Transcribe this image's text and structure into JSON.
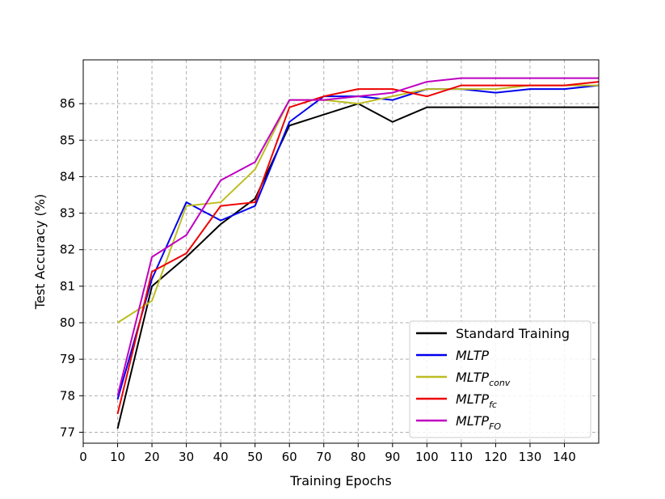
{
  "chart_data": {
    "type": "line",
    "xlabel": "Training Epochs",
    "ylabel": "Test Accuracy (%)",
    "xlim": [
      0,
      150
    ],
    "ylim": [
      76.7,
      87.2
    ],
    "xticks": [
      0,
      10,
      20,
      30,
      40,
      50,
      60,
      70,
      80,
      90,
      100,
      110,
      120,
      130,
      140
    ],
    "yticks": [
      77,
      78,
      79,
      80,
      81,
      82,
      83,
      84,
      85,
      86
    ],
    "grid": true,
    "legend_position": "bottom-right",
    "x": [
      10,
      20,
      30,
      40,
      50,
      60,
      70,
      80,
      90,
      100,
      110,
      120,
      130,
      140,
      150
    ],
    "series": [
      {
        "name": "Standard Training",
        "name_main": "Standard Training",
        "name_sub": "",
        "italic": false,
        "color": "#000000",
        "values": [
          77.1,
          81.0,
          81.8,
          82.7,
          83.4,
          85.4,
          85.7,
          86.0,
          85.5,
          85.9,
          85.9,
          85.9,
          85.9,
          85.9,
          85.9
        ]
      },
      {
        "name": "MLTP",
        "name_main": "MLTP",
        "name_sub": "",
        "italic": true,
        "color": "#0000ee",
        "values": [
          77.9,
          81.2,
          83.3,
          82.8,
          83.2,
          85.5,
          86.2,
          86.2,
          86.1,
          86.4,
          86.4,
          86.3,
          86.4,
          86.4,
          86.5
        ]
      },
      {
        "name": "MLTP_conv",
        "name_main": "MLTP",
        "name_sub": "conv",
        "italic": true,
        "color": "#bcbd22",
        "values": [
          80.0,
          80.6,
          83.2,
          83.3,
          84.2,
          86.1,
          86.1,
          86.0,
          86.2,
          86.4,
          86.4,
          86.4,
          86.5,
          86.5,
          86.5
        ]
      },
      {
        "name": "MLTP_fc",
        "name_main": "MLTP",
        "name_sub": "fc",
        "italic": true,
        "color": "#ee0000",
        "values": [
          77.5,
          81.4,
          81.9,
          83.2,
          83.3,
          85.9,
          86.2,
          86.4,
          86.4,
          86.2,
          86.5,
          86.5,
          86.5,
          86.5,
          86.6
        ]
      },
      {
        "name": "MLTP_FO",
        "name_main": "MLTP",
        "name_sub": "FO",
        "italic": true,
        "color": "#bf00bf",
        "values": [
          78.0,
          81.8,
          82.4,
          83.9,
          84.4,
          86.1,
          86.1,
          86.2,
          86.3,
          86.6,
          86.7,
          86.7,
          86.7,
          86.7,
          86.7
        ]
      }
    ]
  }
}
